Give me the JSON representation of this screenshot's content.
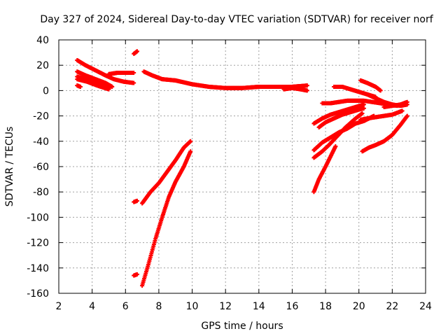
{
  "chart_data": {
    "type": "scatter",
    "title": "Day 327 of 2024, Sidereal Day-to-day VTEC variation (SDTVAR) for receiver norf",
    "xlabel": "GPS time / hours",
    "ylabel": "SDTVAR / TECUs",
    "xlim": [
      2,
      24
    ],
    "ylim": [
      -160,
      40
    ],
    "xticks": [
      "2",
      "4",
      "6",
      "8",
      "10",
      "12",
      "14",
      "16",
      "18",
      "20",
      "22",
      "24"
    ],
    "yticks": [
      "40",
      "20",
      "0",
      "-20",
      "-40",
      "-60",
      "-80",
      "-100",
      "-120",
      "-140",
      "-160"
    ],
    "grid": true,
    "marker": "+",
    "color": "#ff0000",
    "series": [
      {
        "name": "s1",
        "x": [
          3.1,
          3.6,
          4.2,
          4.8,
          5.3,
          5.9,
          6.5
        ],
        "y": [
          24,
          20,
          16,
          12,
          9,
          7,
          6
        ]
      },
      {
        "name": "s2",
        "x": [
          3.1,
          3.6,
          4.2,
          4.8,
          5.2
        ],
        "y": [
          15,
          12,
          9,
          6,
          3
        ]
      },
      {
        "name": "s3",
        "x": [
          3.1,
          3.7,
          4.3,
          5.0
        ],
        "y": [
          9,
          7,
          4,
          1
        ]
      },
      {
        "name": "s4",
        "x": [
          3.1,
          3.3
        ],
        "y": [
          4,
          3
        ]
      },
      {
        "name": "s5",
        "x": [
          3.1,
          3.6,
          4.2,
          4.7,
          5.0
        ],
        "y": [
          11,
          9,
          6,
          4,
          2
        ]
      },
      {
        "name": "s6",
        "x": [
          5.0,
          5.5,
          6.0,
          6.5
        ],
        "y": [
          13,
          14,
          14,
          14
        ]
      },
      {
        "name": "s7",
        "x": [
          6.5,
          6.7
        ],
        "y": [
          29,
          31
        ]
      },
      {
        "name": "s8",
        "x": [
          7.1,
          7.6,
          8.2,
          9.0,
          10.0,
          11.0,
          12.0,
          13.0,
          14.0,
          15.0,
          16.0,
          16.9
        ],
        "y": [
          15,
          12,
          9,
          8,
          5,
          3,
          2,
          2,
          3,
          3,
          3,
          4
        ]
      },
      {
        "name": "s9",
        "x": [
          15.5,
          16.0,
          16.5,
          16.9
        ],
        "y": [
          1,
          2,
          1,
          0
        ]
      },
      {
        "name": "s10",
        "x": [
          6.5,
          6.7
        ],
        "y": [
          -146,
          -145
        ]
      },
      {
        "name": "s11",
        "x": [
          6.5,
          6.7
        ],
        "y": [
          -88,
          -87
        ]
      },
      {
        "name": "s12",
        "x": [
          7.0,
          7.5,
          8.0,
          8.5,
          9.0,
          9.5,
          9.9
        ],
        "y": [
          -89,
          -80,
          -73,
          -64,
          -55,
          -45,
          -40
        ]
      },
      {
        "name": "s13",
        "x": [
          7.0,
          7.4,
          7.8,
          8.2,
          8.6,
          9.0,
          9.5,
          9.9
        ],
        "y": [
          -154,
          -136,
          -117,
          -100,
          -84,
          -72,
          -60,
          -48
        ]
      },
      {
        "name": "s14",
        "x": [
          17.3,
          17.6,
          18.0,
          18.3,
          18.6
        ],
        "y": [
          -80,
          -70,
          -60,
          -52,
          -44
        ]
      },
      {
        "name": "s15",
        "x": [
          17.3,
          17.8,
          18.3,
          18.8,
          19.3,
          19.8,
          20.3,
          20.9
        ],
        "y": [
          -47,
          -41,
          -37,
          -33,
          -30,
          -26,
          -24,
          -20
        ]
      },
      {
        "name": "s16",
        "x": [
          17.3,
          17.8,
          18.2,
          18.7,
          19.2,
          19.8,
          20.2
        ],
        "y": [
          -53,
          -48,
          -43,
          -36,
          -29,
          -22,
          -18
        ]
      },
      {
        "name": "s17",
        "x": [
          17.3,
          17.8,
          18.3,
          18.8,
          19.3,
          19.8,
          20.3
        ],
        "y": [
          -26,
          -22,
          -19,
          -17,
          -15,
          -13,
          -11
        ]
      },
      {
        "name": "s18",
        "x": [
          17.6,
          18.0,
          18.5,
          19.0,
          19.5,
          20.0,
          20.3
        ],
        "y": [
          -29,
          -25,
          -22,
          -19,
          -17,
          -15,
          -14
        ]
      },
      {
        "name": "s19",
        "x": [
          17.8,
          18.3,
          18.8,
          19.3,
          19.8,
          20.3,
          20.8,
          21.3,
          21.8,
          22.3
        ],
        "y": [
          -10,
          -10,
          -9,
          -8,
          -8,
          -8,
          -9,
          -10,
          -11,
          -12
        ]
      },
      {
        "name": "s20",
        "x": [
          18.5,
          19.0,
          19.5,
          20.0,
          20.5,
          21.0
        ],
        "y": [
          3,
          3,
          1,
          -1,
          -3,
          -5
        ]
      },
      {
        "name": "s21",
        "x": [
          20.1,
          20.5,
          21.0,
          21.3
        ],
        "y": [
          8,
          6,
          3,
          0
        ]
      },
      {
        "name": "s22",
        "x": [
          20.5,
          21.0,
          21.5,
          22.0,
          22.5,
          22.9
        ],
        "y": [
          -3,
          -6,
          -9,
          -11,
          -12,
          -11
        ]
      },
      {
        "name": "s23",
        "x": [
          21.5,
          22.0,
          22.5,
          22.9
        ],
        "y": [
          -13,
          -12,
          -11,
          -9
        ]
      },
      {
        "name": "s24",
        "x": [
          20.2,
          20.6,
          21.0,
          21.5,
          22.0,
          22.5,
          22.9
        ],
        "y": [
          -48,
          -45,
          -43,
          -40,
          -35,
          -27,
          -20
        ]
      },
      {
        "name": "s25",
        "x": [
          20.1,
          20.5,
          21.0,
          21.5,
          22.0,
          22.4,
          22.6
        ],
        "y": [
          -23,
          -22,
          -21,
          -20,
          -19,
          -17,
          -16
        ]
      }
    ]
  }
}
